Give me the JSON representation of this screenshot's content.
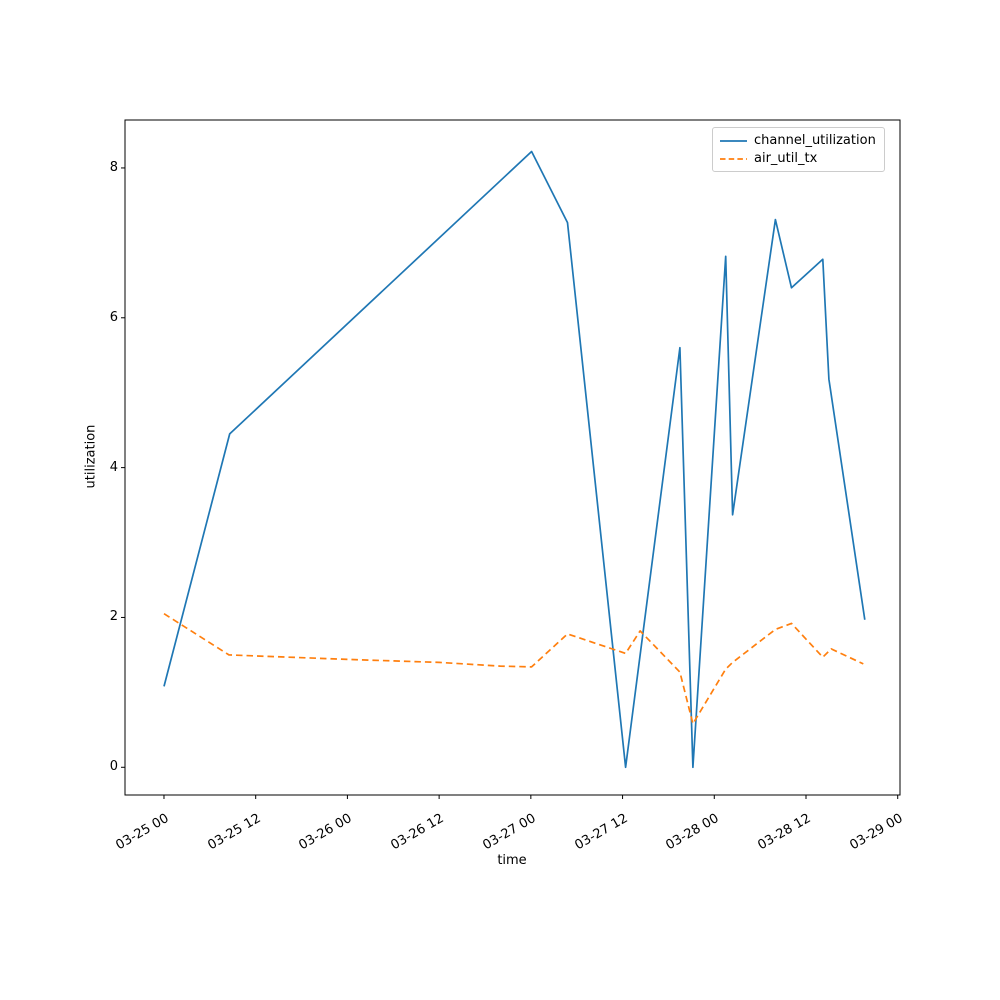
{
  "figure": {
    "background_color": "#ffffff",
    "title": "",
    "xlabel": "time",
    "ylabel": "utilization"
  },
  "legend": {
    "position": "upper right",
    "items": [
      {
        "label": "channel_utilization",
        "color": "#1f77b4",
        "line_style": "solid"
      },
      {
        "label": "air_util_tx",
        "color": "#ff7f0e",
        "line_style": "dashed"
      }
    ]
  },
  "chart_data": {
    "type": "line",
    "title": "",
    "xlabel": "time",
    "ylabel": "utilization",
    "grid": false,
    "legend_position": "upper right",
    "x_unit": "hours since 03-25 00:00",
    "xlim": [
      -5.1,
      96.3
    ],
    "ylim": [
      -0.37,
      8.64
    ],
    "yticks": [
      0,
      2,
      4,
      6,
      8
    ],
    "xticks": [
      {
        "pos": 0,
        "label": "03-25 00"
      },
      {
        "pos": 12,
        "label": "03-25 12"
      },
      {
        "pos": 24,
        "label": "03-26 00"
      },
      {
        "pos": 36,
        "label": "03-26 12"
      },
      {
        "pos": 48,
        "label": "03-27 00"
      },
      {
        "pos": 60,
        "label": "03-27 12"
      },
      {
        "pos": 72,
        "label": "03-28 00"
      },
      {
        "pos": 84,
        "label": "03-28 12"
      },
      {
        "pos": 96,
        "label": "03-29 00"
      }
    ],
    "series": [
      {
        "name": "channel_utilization",
        "color": "#1f77b4",
        "line_style": "solid",
        "times": [
          "03-25 00:00",
          "03-25 08:36",
          "03-27 00:06",
          "03-27 04:48",
          "03-27 12:24",
          "03-27 19:30",
          "03-27 21:12",
          "03-28 01:30",
          "03-28 02:24",
          "03-28 08:00",
          "03-28 10:06",
          "03-28 14:12",
          "03-28 15:00",
          "03-28 19:42"
        ],
        "points": [
          [
            0.0,
            1.08
          ],
          [
            8.6,
            4.45
          ],
          [
            48.1,
            8.22
          ],
          [
            52.8,
            7.27
          ],
          [
            60.4,
            0.0
          ],
          [
            67.5,
            5.6
          ],
          [
            69.2,
            0.0
          ],
          [
            73.5,
            6.82
          ],
          [
            74.4,
            3.37
          ],
          [
            80.0,
            7.31
          ],
          [
            82.1,
            6.4
          ],
          [
            86.2,
            6.78
          ],
          [
            87.0,
            5.18
          ],
          [
            91.7,
            1.97
          ]
        ]
      },
      {
        "name": "air_util_tx",
        "color": "#ff7f0e",
        "line_style": "dashed",
        "times": [
          "03-25 00:00",
          "03-25 08:30",
          "03-26 00:00",
          "03-26 12:00",
          "03-26 20:00",
          "03-27 00:06",
          "03-27 04:48",
          "03-27 12:24",
          "03-27 14:18",
          "03-27 19:30",
          "03-27 21:12",
          "03-28 01:30",
          "03-28 02:24",
          "03-28 08:00",
          "03-28 10:06",
          "03-28 14:12",
          "03-28 15:18",
          "03-28 19:30"
        ],
        "points": [
          [
            0.0,
            2.05
          ],
          [
            8.5,
            1.5
          ],
          [
            24.0,
            1.44
          ],
          [
            36.0,
            1.4
          ],
          [
            44.0,
            1.35
          ],
          [
            48.1,
            1.34
          ],
          [
            52.8,
            1.78
          ],
          [
            60.4,
            1.52
          ],
          [
            62.3,
            1.82
          ],
          [
            67.5,
            1.27
          ],
          [
            69.2,
            0.58
          ],
          [
            73.5,
            1.31
          ],
          [
            74.4,
            1.4
          ],
          [
            80.0,
            1.84
          ],
          [
            82.1,
            1.92
          ],
          [
            86.2,
            1.47
          ],
          [
            87.3,
            1.58
          ],
          [
            91.5,
            1.38
          ]
        ]
      }
    ]
  }
}
